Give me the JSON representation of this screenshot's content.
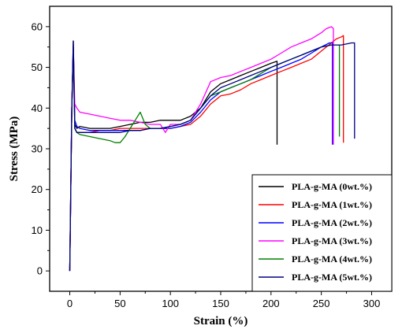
{
  "chart_data": {
    "type": "line",
    "title": "",
    "xlabel": "Strain (%)",
    "ylabel": "Stress (MPa)",
    "xlim": [
      -20,
      320
    ],
    "ylim": [
      -5,
      65
    ],
    "xticks": [
      0,
      50,
      100,
      150,
      200,
      250,
      300
    ],
    "yticks": [
      0,
      10,
      20,
      30,
      40,
      50,
      60
    ],
    "grid": false,
    "legend_position": "bottom-right",
    "series": [
      {
        "name": "PLA-g-MA (0wt.%)",
        "color": "#000000",
        "x": [
          0,
          2,
          3.5,
          5,
          7,
          10,
          20,
          30,
          40,
          50,
          60,
          70,
          80,
          90,
          100,
          110,
          120,
          130,
          140,
          150,
          160,
          170,
          180,
          190,
          200,
          206,
          206
        ],
        "y": [
          0,
          40,
          56.5,
          36,
          35,
          35.5,
          35,
          35,
          35,
          35.5,
          36,
          36.5,
          36.5,
          37,
          37,
          37,
          38,
          40,
          44,
          46,
          47,
          48,
          49,
          50,
          51,
          51.5,
          31
        ]
      },
      {
        "name": "PLA-g-MA (1wt.%)",
        "color": "#ff0000",
        "x": [
          0,
          2,
          3.5,
          5,
          7,
          10,
          20,
          30,
          40,
          50,
          60,
          70,
          80,
          90,
          100,
          110,
          120,
          130,
          140,
          150,
          160,
          170,
          180,
          190,
          200,
          210,
          220,
          230,
          240,
          250,
          260,
          265,
          270,
          272,
          272
        ],
        "y": [
          0,
          40,
          55,
          35,
          34,
          34,
          34,
          34.5,
          34.5,
          35,
          35,
          35,
          35,
          35,
          35,
          35.5,
          36,
          38,
          41,
          43,
          43.5,
          44.5,
          46,
          47,
          48,
          49,
          50,
          51,
          52,
          54,
          56,
          57,
          57.5,
          57.8,
          31.5
        ]
      },
      {
        "name": "PLA-g-MA (2wt.%)",
        "color": "#0000ff",
        "x": [
          0,
          2,
          3.5,
          5,
          7,
          10,
          20,
          30,
          40,
          50,
          60,
          70,
          80,
          90,
          100,
          110,
          120,
          130,
          140,
          150,
          160,
          170,
          180,
          190,
          200,
          210,
          220,
          230,
          240,
          250,
          258,
          261,
          261
        ],
        "y": [
          0,
          40,
          55,
          37,
          35.5,
          35,
          34.5,
          34.5,
          34.5,
          34.5,
          34.5,
          34.5,
          35,
          35,
          35,
          35.5,
          36.5,
          39,
          42,
          44,
          45,
          46,
          47,
          48,
          49,
          50,
          51,
          52,
          53.5,
          55,
          56,
          56,
          31
        ]
      },
      {
        "name": "PLA-g-MA (3wt.%)",
        "color": "#ff00ff",
        "x": [
          0,
          2,
          3.5,
          5,
          7,
          10,
          20,
          30,
          40,
          50,
          60,
          70,
          80,
          90,
          95,
          100,
          110,
          120,
          130,
          140,
          150,
          160,
          170,
          180,
          190,
          200,
          210,
          220,
          230,
          240,
          250,
          255,
          260,
          262,
          262
        ],
        "y": [
          0,
          40,
          55,
          41,
          40,
          39,
          38.5,
          38,
          37.5,
          37,
          37,
          36.5,
          36,
          36,
          34,
          36,
          36,
          37,
          41,
          46.5,
          47.5,
          48,
          49,
          50,
          51,
          52,
          53.5,
          55,
          56,
          57,
          58.5,
          59.5,
          60,
          59.5,
          31
        ]
      },
      {
        "name": "PLA-g-MA (4wt.%)",
        "color": "#008000",
        "x": [
          0,
          2,
          3.5,
          5,
          7,
          10,
          20,
          30,
          40,
          45,
          50,
          55,
          60,
          65,
          70,
          75,
          80,
          90,
          100,
          110,
          120,
          130,
          140,
          150,
          160,
          170,
          180,
          190,
          200,
          210,
          220,
          230,
          240,
          250,
          260,
          268,
          268
        ],
        "y": [
          0,
          40,
          55,
          35,
          34,
          33.5,
          33,
          32.5,
          32,
          31.5,
          31.5,
          33,
          35,
          37,
          39,
          36,
          35,
          35,
          35.5,
          36,
          37,
          40,
          43,
          44,
          45,
          46,
          47,
          48.5,
          50,
          51,
          52,
          53,
          54,
          55,
          55.5,
          55.5,
          33
        ]
      },
      {
        "name": "PLA-g-MA (5wt.%)",
        "color": "#000080",
        "x": [
          0,
          2,
          3.5,
          5,
          7,
          10,
          20,
          30,
          40,
          50,
          60,
          70,
          80,
          90,
          100,
          110,
          120,
          130,
          140,
          150,
          160,
          170,
          180,
          190,
          200,
          210,
          220,
          230,
          240,
          250,
          260,
          270,
          280,
          283,
          283
        ],
        "y": [
          0,
          40,
          56.5,
          35,
          34,
          34,
          34,
          34,
          34,
          34,
          34.5,
          34.5,
          35,
          35,
          35.5,
          36,
          37,
          40,
          43,
          45,
          46,
          47,
          48,
          49,
          50,
          51,
          52,
          53,
          54,
          55,
          55.5,
          55.5,
          56,
          56,
          32.5
        ]
      }
    ]
  }
}
